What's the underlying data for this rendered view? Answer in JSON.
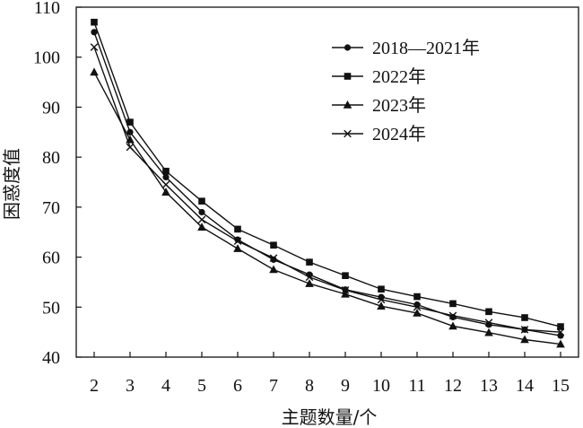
{
  "chart_data": {
    "type": "line",
    "xlabel": "主题数量/个",
    "ylabel": "困惑度值",
    "x": [
      2,
      3,
      4,
      5,
      6,
      7,
      8,
      9,
      10,
      11,
      12,
      13,
      14,
      15
    ],
    "xticks": [
      "2",
      "3",
      "4",
      "5",
      "6",
      "7",
      "8",
      "9",
      "10",
      "11",
      "12",
      "13",
      "14",
      "15"
    ],
    "yticks": [
      "40",
      "50",
      "60",
      "70",
      "80",
      "90",
      "100",
      "110"
    ],
    "ylim": [
      40,
      110
    ],
    "grid": false,
    "legend_position": "top-right",
    "series": [
      {
        "name": "2018—2021年",
        "marker": "circle",
        "values": [
          105,
          85,
          76,
          69,
          63.5,
          59.5,
          56.5,
          53.5,
          52,
          50.5,
          48,
          46.5,
          45.5,
          44.3
        ]
      },
      {
        "name": "2022年",
        "marker": "square",
        "values": [
          107,
          87,
          77.2,
          71.2,
          65.6,
          62.4,
          59,
          56.3,
          53.6,
          52.1,
          50.7,
          49.1,
          47.9,
          46.1
        ]
      },
      {
        "name": "2023年",
        "marker": "triangle",
        "values": [
          97,
          83.5,
          73,
          66,
          61.7,
          57.5,
          54.7,
          52.6,
          50.2,
          48.8,
          46.2,
          44.9,
          43.5,
          42.6
        ]
      },
      {
        "name": "2024年",
        "marker": "x",
        "values": [
          102,
          82,
          74.5,
          67.5,
          63.2,
          59.8,
          56,
          53.4,
          51.5,
          50,
          48.3,
          46.9,
          45.5,
          45
        ]
      }
    ]
  }
}
